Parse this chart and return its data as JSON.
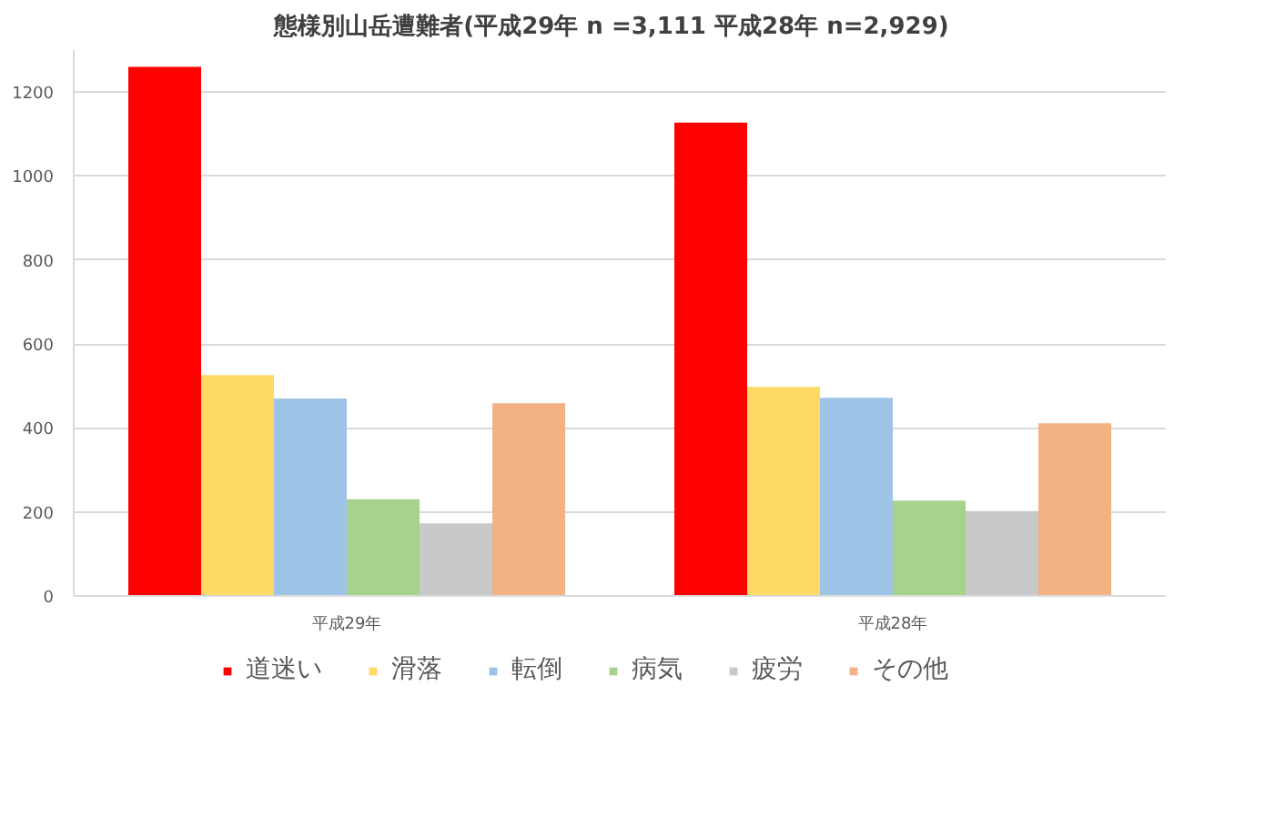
{
  "chart_data": {
    "type": "bar",
    "title": "態様別山岳遭難者(平成29年  n =3,111  平成28年 n=2,929)",
    "categories": [
      "平成29年",
      "平成28年"
    ],
    "series": [
      {
        "name": "道迷い",
        "color": "#ff0000",
        "values": [
          1260,
          1127
        ]
      },
      {
        "name": "滑落",
        "color": "#ffd966",
        "values": [
          526,
          498
        ]
      },
      {
        "name": "転倒",
        "color": "#9dc3e6",
        "values": [
          470,
          472
        ]
      },
      {
        "name": "病気",
        "color": "#a9d18e",
        "values": [
          230,
          227
        ]
      },
      {
        "name": "疲労",
        "color": "#c9c9c9",
        "values": [
          173,
          202
        ]
      },
      {
        "name": "その他",
        "color": "#f4b183",
        "values": [
          459,
          411
        ]
      }
    ],
    "ylim": [
      0,
      1300
    ],
    "yticks": [
      0,
      200,
      400,
      600,
      800,
      1000,
      1200
    ],
    "grid": "y",
    "legend": "bottom"
  }
}
